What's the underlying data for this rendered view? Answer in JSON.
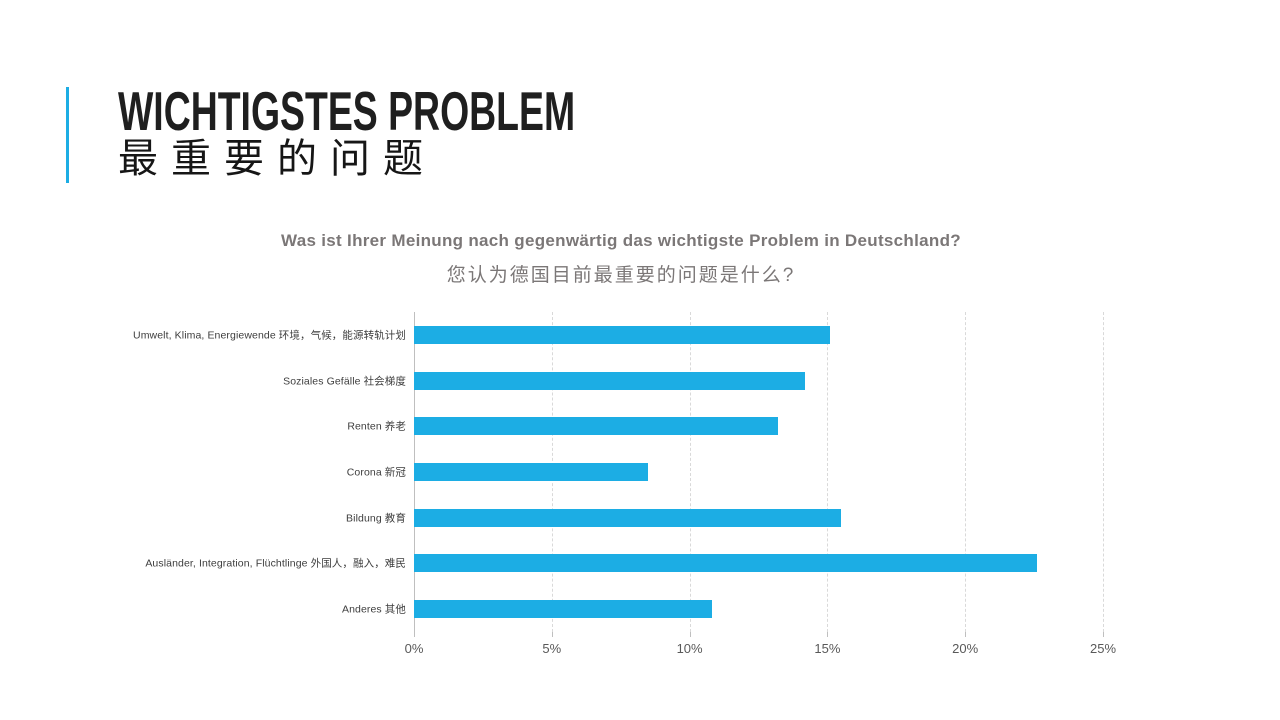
{
  "slide": {
    "title": "WICHTIGSTES PROBLEM",
    "title_zh": "最重要的问题",
    "accent_color": "#1CADE4",
    "background_color": "#FFFFFF"
  },
  "chart_data": {
    "type": "bar",
    "orientation": "horizontal",
    "title": "Was ist Ihrer Meinung nach gegenwärtig das wichtigste Problem in Deutschland?",
    "title_zh": "您认为德国目前最重要的问题是什么?",
    "categories": [
      "Umwelt, Klima, Energiewende 环境，气候，能源转轨计划",
      "Soziales Gefälle 社会梯度",
      "Renten 养老",
      "Corona 新冠",
      "Bildung 教育",
      "Ausländer, Integration, Flüchtlinge 外国人，融入，难民",
      "Anderes 其他"
    ],
    "values": [
      15.1,
      14.2,
      13.2,
      8.5,
      15.5,
      22.6,
      10.8
    ],
    "unit": "%",
    "xlim": [
      0,
      25
    ],
    "tick_step": 5,
    "x_ticks": [
      "0%",
      "5%",
      "10%",
      "15%",
      "20%",
      "25%"
    ],
    "grid": "vertical-dashed",
    "legend": "none",
    "bar_color": "#1CADE4",
    "grid_color": "#D9D9D9",
    "axis_color": "#BFBFBF",
    "tick_label_color": "#595959",
    "category_label_color": "#3D3D3D",
    "question_color": "#7B7777"
  }
}
